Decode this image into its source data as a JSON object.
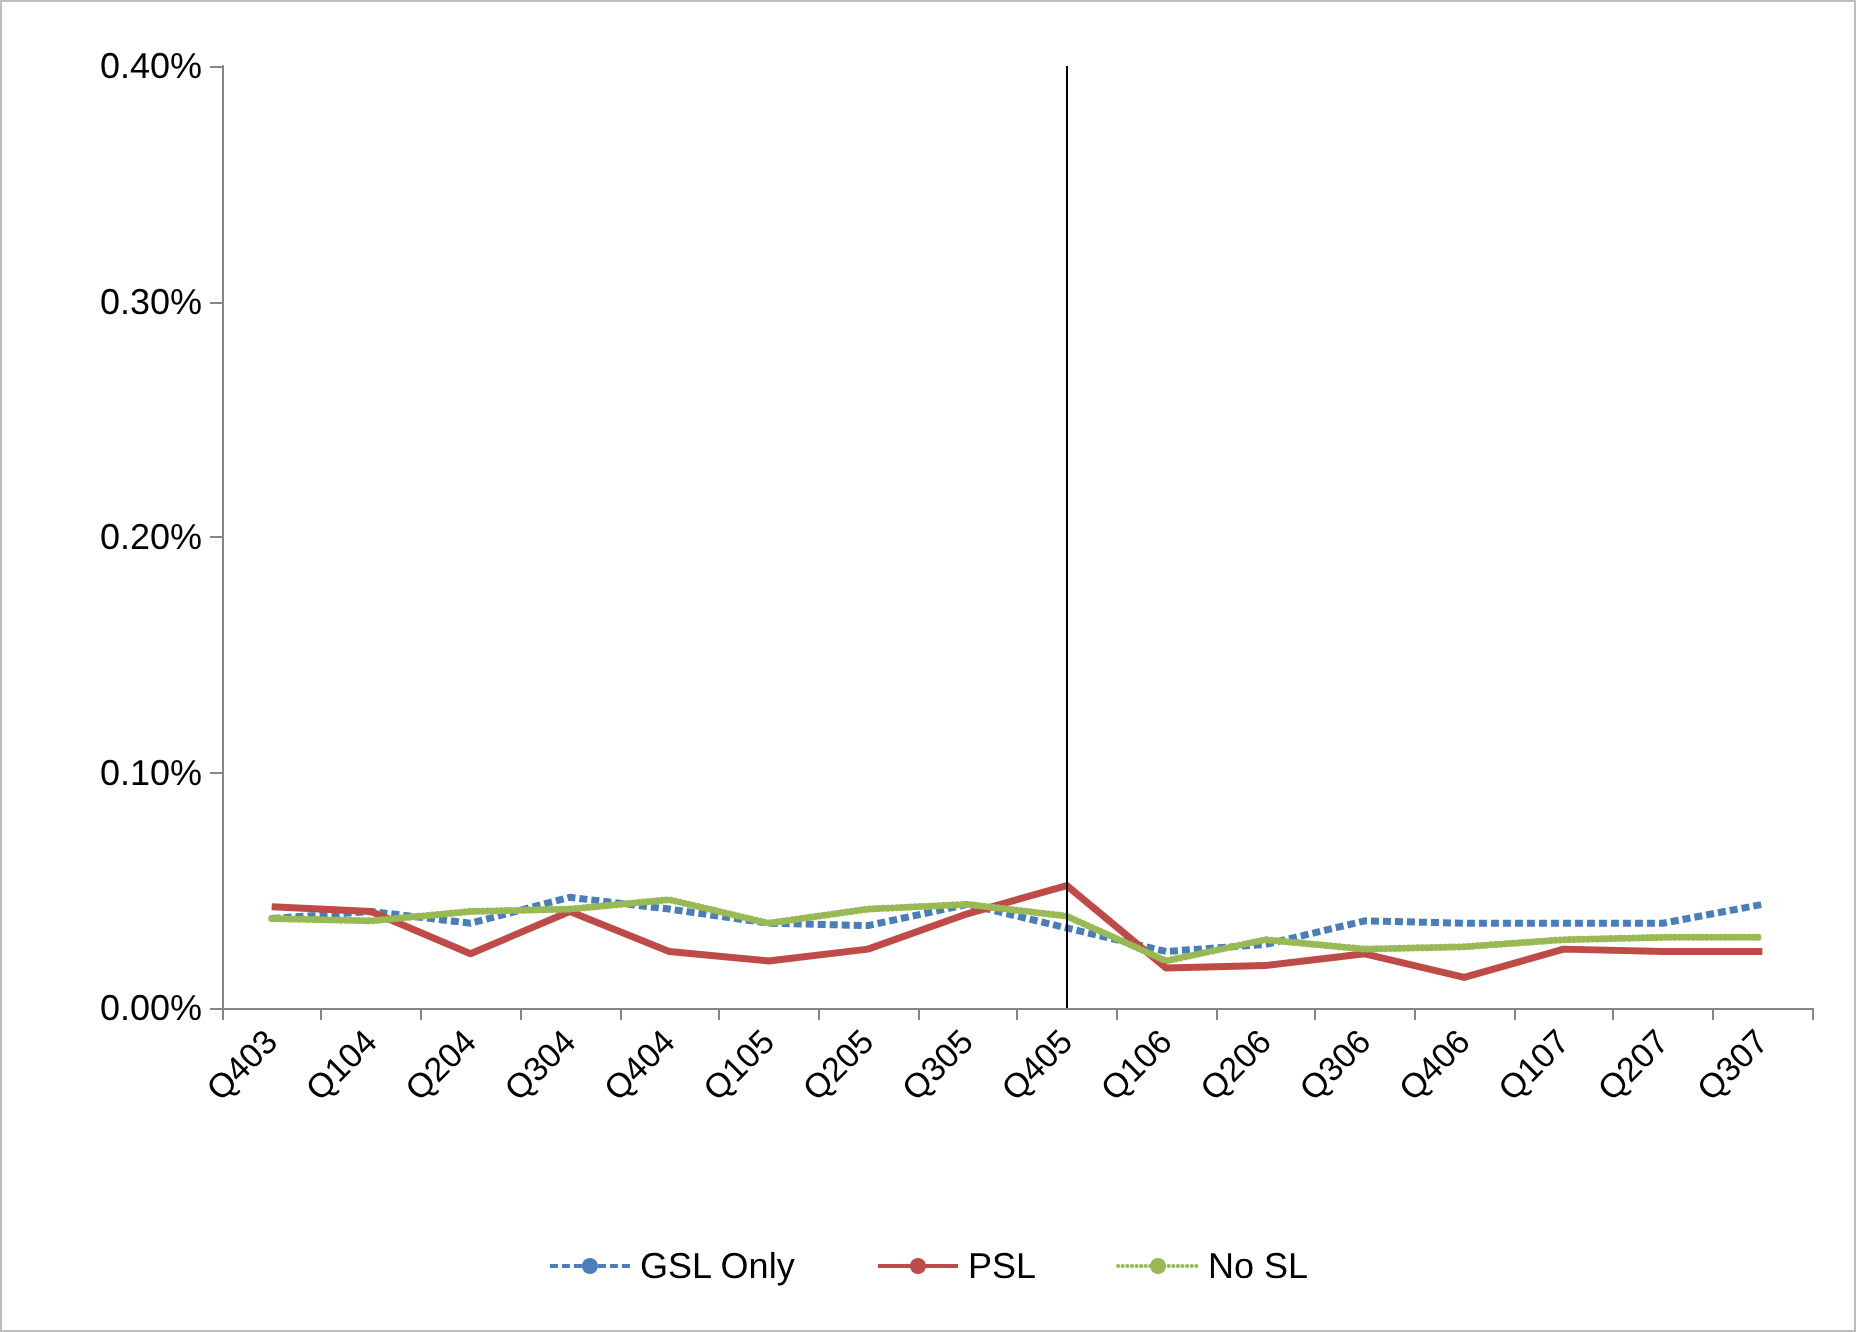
{
  "chart_data": {
    "type": "line",
    "categories": [
      "Q403",
      "Q104",
      "Q204",
      "Q304",
      "Q404",
      "Q105",
      "Q205",
      "Q305",
      "Q405",
      "Q106",
      "Q206",
      "Q306",
      "Q406",
      "Q107",
      "Q207",
      "Q307"
    ],
    "series": [
      {
        "name": "GSL Only",
        "color": "#4a7ebb",
        "line_style": "dashed",
        "values": [
          0.038,
          0.041,
          0.036,
          0.047,
          0.042,
          0.036,
          0.035,
          0.044,
          0.034,
          0.024,
          0.027,
          0.037,
          0.036,
          0.036,
          0.036,
          0.044
        ]
      },
      {
        "name": "PSL",
        "color": "#be4b48",
        "line_style": "solid",
        "values": [
          0.043,
          0.041,
          0.023,
          0.041,
          0.024,
          0.02,
          0.025,
          0.04,
          0.052,
          0.017,
          0.018,
          0.023,
          0.013,
          0.025,
          0.024,
          0.024
        ]
      },
      {
        "name": "No SL",
        "color": "#98b954",
        "line_style": "dotted",
        "values": [
          0.038,
          0.037,
          0.041,
          0.042,
          0.046,
          0.036,
          0.042,
          0.044,
          0.039,
          0.02,
          0.029,
          0.025,
          0.026,
          0.029,
          0.03,
          0.03
        ]
      }
    ],
    "ylim": [
      0,
      0.4
    ],
    "yticks": [
      {
        "value": 0,
        "label": "0.00%"
      },
      {
        "value": 0.1,
        "label": "0.10%"
      },
      {
        "value": 0.2,
        "label": "0.20%"
      },
      {
        "value": 0.3,
        "label": "0.30%"
      },
      {
        "value": 0.4,
        "label": "0.40%"
      }
    ],
    "ref_lines": [
      {
        "axis": "x",
        "value": "Q405",
        "color": "#000000"
      }
    ],
    "marker": "none",
    "grid": false,
    "legend": "bottom"
  }
}
